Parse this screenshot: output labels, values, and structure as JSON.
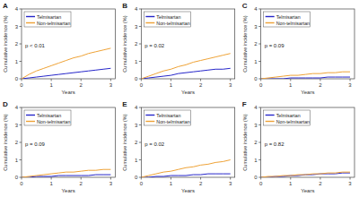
{
  "chart_data": [
    {
      "type": "line",
      "title": "A",
      "annotation": "p < 0.01",
      "x_label": "Years",
      "y_label": "Cumulative incidence (%)",
      "x": [
        0,
        0.25,
        0.5,
        0.75,
        1,
        1.25,
        1.5,
        1.75,
        2,
        2.25,
        2.5,
        2.75,
        3
      ],
      "xlim": [
        0,
        3.15
      ],
      "ylim": [
        0,
        4
      ],
      "xticks": [
        0,
        1,
        2,
        3
      ],
      "yticks": [
        0,
        1,
        2,
        3,
        4
      ],
      "grid": false,
      "legend": "top-left",
      "series": [
        {
          "name": "Telmisartan",
          "color": "#2626c9",
          "line_style": "solid",
          "values": [
            0,
            0.05,
            0.1,
            0.15,
            0.2,
            0.25,
            0.3,
            0.35,
            0.4,
            0.45,
            0.5,
            0.55,
            0.6
          ]
        },
        {
          "name": "Non-telmisartan",
          "color": "#eea236",
          "line_style": "solid",
          "values": [
            0,
            0.25,
            0.45,
            0.6,
            0.75,
            0.9,
            1.05,
            1.2,
            1.3,
            1.45,
            1.55,
            1.65,
            1.75
          ]
        }
      ]
    },
    {
      "type": "line",
      "title": "B",
      "annotation": "p = 0.02",
      "x_label": "Years",
      "y_label": "Cumulative incidence (%)",
      "x": [
        0,
        0.25,
        0.5,
        0.75,
        1,
        1.25,
        1.5,
        1.75,
        2,
        2.25,
        2.5,
        2.75,
        3
      ],
      "xlim": [
        0,
        3.15
      ],
      "ylim": [
        0,
        4
      ],
      "xticks": [
        0,
        1,
        2,
        3
      ],
      "yticks": [
        0,
        1,
        2,
        3,
        4
      ],
      "grid": false,
      "legend": "top-left",
      "series": [
        {
          "name": "Telmisartan",
          "color": "#2626c9",
          "line_style": "solid",
          "values": [
            0,
            0.05,
            0.1,
            0.15,
            0.2,
            0.3,
            0.35,
            0.4,
            0.45,
            0.5,
            0.55,
            0.55,
            0.6
          ]
        },
        {
          "name": "Non-telmisartan",
          "color": "#eea236",
          "line_style": "solid",
          "values": [
            0,
            0.15,
            0.3,
            0.45,
            0.55,
            0.7,
            0.8,
            0.95,
            1.05,
            1.15,
            1.25,
            1.35,
            1.45
          ]
        }
      ]
    },
    {
      "type": "line",
      "title": "C",
      "annotation": "p = 0.09",
      "x_label": "Years",
      "y_label": "Cumulative incidence (%)",
      "x": [
        0,
        0.25,
        0.5,
        0.75,
        1,
        1.25,
        1.5,
        1.75,
        2,
        2.25,
        2.5,
        2.75,
        3
      ],
      "xlim": [
        0,
        3.15
      ],
      "ylim": [
        0,
        4
      ],
      "xticks": [
        0,
        1,
        2,
        3
      ],
      "yticks": [
        0,
        1,
        2,
        3,
        4
      ],
      "grid": false,
      "legend": "top-left",
      "series": [
        {
          "name": "Telmisartan",
          "color": "#2626c9",
          "line_style": "solid",
          "values": [
            0,
            0,
            0,
            0,
            0.05,
            0.05,
            0.05,
            0.05,
            0.05,
            0.1,
            0.1,
            0.1,
            0.1
          ]
        },
        {
          "name": "Non-telmisartan",
          "color": "#eea236",
          "line_style": "solid",
          "values": [
            0,
            0.05,
            0.1,
            0.15,
            0.2,
            0.2,
            0.25,
            0.3,
            0.3,
            0.35,
            0.35,
            0.4,
            0.4
          ]
        }
      ]
    },
    {
      "type": "line",
      "title": "D",
      "annotation": "p = 0.09",
      "x_label": "Years",
      "y_label": "Cumulative incidence (%)",
      "x": [
        0,
        0.25,
        0.5,
        0.75,
        1,
        1.25,
        1.5,
        1.75,
        2,
        2.25,
        2.5,
        2.75,
        3
      ],
      "xlim": [
        0,
        3.15
      ],
      "ylim": [
        0,
        4
      ],
      "xticks": [
        0,
        1,
        2,
        3
      ],
      "yticks": [
        0,
        1,
        2,
        3,
        4
      ],
      "grid": false,
      "legend": "top-left",
      "series": [
        {
          "name": "Telmisartan",
          "color": "#2626c9",
          "line_style": "solid",
          "values": [
            0,
            0,
            0.05,
            0.05,
            0.05,
            0.1,
            0.1,
            0.1,
            0.1,
            0.1,
            0.15,
            0.15,
            0.15
          ]
        },
        {
          "name": "Non-telmisartan",
          "color": "#eea236",
          "line_style": "solid",
          "values": [
            0,
            0.05,
            0.1,
            0.15,
            0.2,
            0.25,
            0.3,
            0.3,
            0.35,
            0.4,
            0.4,
            0.45,
            0.45
          ]
        }
      ]
    },
    {
      "type": "line",
      "title": "E",
      "annotation": "p = 0.02",
      "x_label": "Years",
      "y_label": "Cumulative incidence (%)",
      "x": [
        0,
        0.25,
        0.5,
        0.75,
        1,
        1.25,
        1.5,
        1.75,
        2,
        2.25,
        2.5,
        2.75,
        3
      ],
      "xlim": [
        0,
        3.15
      ],
      "ylim": [
        0,
        4
      ],
      "xticks": [
        0,
        1,
        2,
        3
      ],
      "yticks": [
        0,
        1,
        2,
        3,
        4
      ],
      "grid": false,
      "legend": "top-left",
      "series": [
        {
          "name": "Telmisartan",
          "color": "#2626c9",
          "line_style": "solid",
          "values": [
            0,
            0,
            0.05,
            0.05,
            0.1,
            0.1,
            0.1,
            0.15,
            0.15,
            0.2,
            0.2,
            0.2,
            0.2
          ]
        },
        {
          "name": "Non-telmisartan",
          "color": "#eea236",
          "line_style": "solid",
          "values": [
            0,
            0.1,
            0.2,
            0.3,
            0.35,
            0.45,
            0.55,
            0.6,
            0.7,
            0.75,
            0.85,
            0.9,
            1.0
          ]
        }
      ]
    },
    {
      "type": "line",
      "title": "F",
      "annotation": "p = 0.82",
      "x_label": "Years",
      "y_label": "Cumulative incidence (%)",
      "x": [
        0,
        0.25,
        0.5,
        0.75,
        1,
        1.25,
        1.5,
        1.75,
        2,
        2.25,
        2.5,
        2.75,
        3
      ],
      "xlim": [
        0,
        3.15
      ],
      "ylim": [
        0,
        4
      ],
      "xticks": [
        0,
        1,
        2,
        3
      ],
      "yticks": [
        0,
        1,
        2,
        3,
        4
      ],
      "grid": false,
      "legend": "top-left",
      "series": [
        {
          "name": "Telmisartan",
          "color": "#2626c9",
          "line_style": "solid",
          "values": [
            0,
            0,
            0.05,
            0.05,
            0.1,
            0.1,
            0.15,
            0.15,
            0.2,
            0.2,
            0.2,
            0.25,
            0.25
          ]
        },
        {
          "name": "Non-telmisartan",
          "color": "#eea236",
          "line_style": "solid",
          "values": [
            0,
            0.05,
            0.05,
            0.1,
            0.1,
            0.15,
            0.15,
            0.2,
            0.2,
            0.25,
            0.25,
            0.3,
            0.3
          ]
        }
      ]
    }
  ]
}
